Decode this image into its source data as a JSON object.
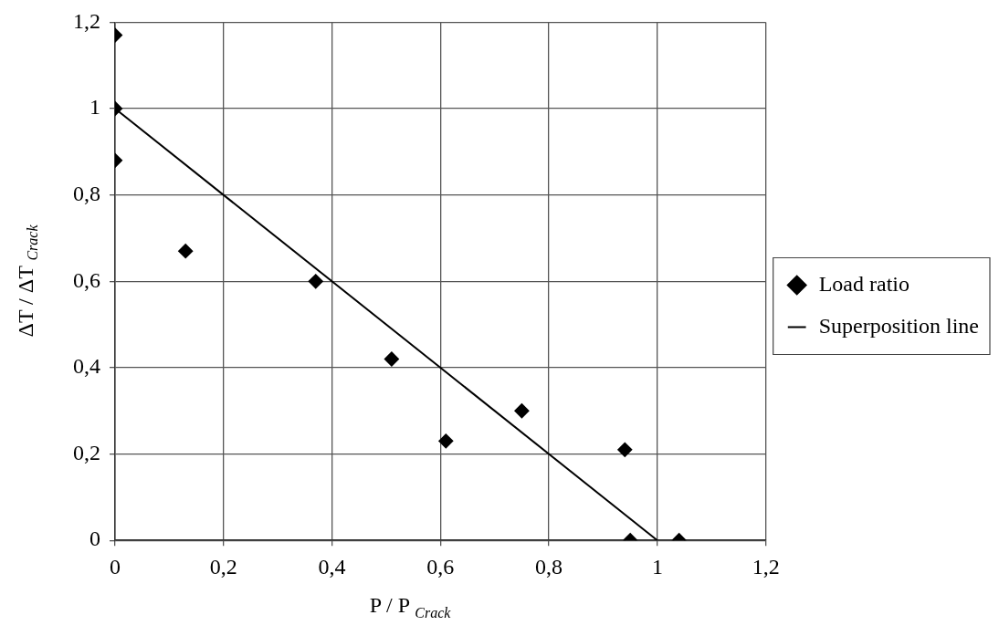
{
  "chart_data": {
    "type": "scatter",
    "xlabel": "P / P $_{Crack}$",
    "ylabel": "ΔT / ΔT $_{Crack}$",
    "series": [
      {
        "name": "Load ratio",
        "color": "#000000",
        "marker": "diamond",
        "x": [
          0,
          0,
          0,
          0.13,
          0.37,
          0.51,
          0.61,
          0.75,
          0.94,
          0.95,
          1.04
        ],
        "values": [
          1.17,
          1,
          0.88,
          0.67,
          0.6,
          0.42,
          0.23,
          0.3,
          0.21,
          0,
          0
        ]
      },
      {
        "name": "Superposition line",
        "type": "line",
        "color": "#000000",
        "marker": "none",
        "line_style": "solid",
        "x": [
          0,
          1
        ],
        "values": [
          1,
          0
        ]
      }
    ],
    "xlim": [
      0,
      1.2
    ],
    "ylim": [
      0,
      1.2
    ],
    "xticks": [
      0,
      {
        "value": 0.2,
        "label": "0,2"
      },
      {
        "value": 0.4,
        "label": "0,4"
      },
      {
        "value": 0.6,
        "label": "0,6"
      },
      {
        "value": 0.8,
        "label": "0,8"
      },
      1,
      {
        "value": 1.2,
        "label": "1,2"
      }
    ],
    "yticks": [
      0,
      {
        "value": 0.2,
        "label": "0,2"
      },
      {
        "value": 0.4,
        "label": "0,4"
      },
      {
        "value": 0.6,
        "label": "0,6"
      },
      {
        "value": 0.8,
        "label": "0,8"
      },
      1,
      {
        "value": 1.2,
        "label": "1,2"
      }
    ],
    "grid": true,
    "legend": "right"
  }
}
